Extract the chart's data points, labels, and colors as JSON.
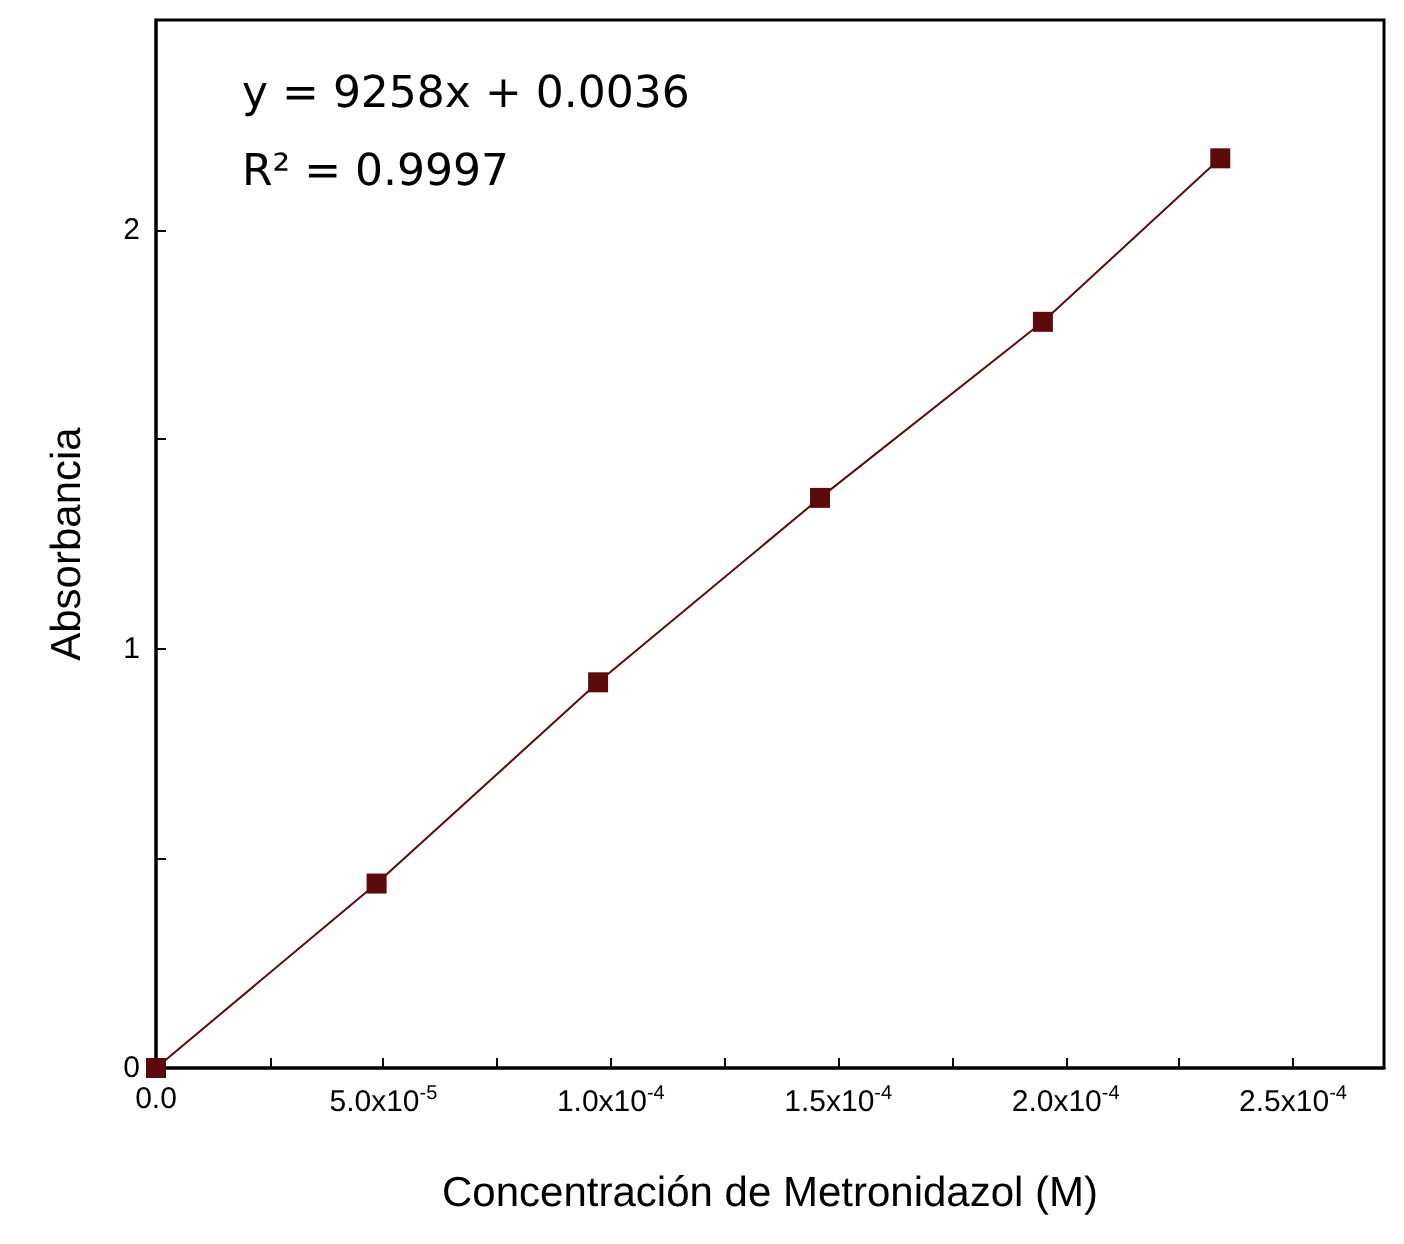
{
  "chart_data": {
    "type": "line",
    "xlabel": "Concentración de Metronidazol (M)",
    "ylabel": "Absorbancia",
    "x": [
      0,
      4.85e-05,
      9.72e-05,
      0.000146,
      0.000195,
      0.000234
    ],
    "series": [
      {
        "color": "#5c0a0a",
        "values": [
          0,
          0.44,
          0.92,
          1.36,
          1.78,
          2.17
        ]
      }
    ],
    "xlim": [
      0,
      0.00027
    ],
    "xticks": [
      {
        "value": 0,
        "label": "0.0"
      },
      {
        "value": 2.5e-05,
        "label": null
      },
      {
        "value": 5e-05,
        "label": "5.0x10$^{-5}$"
      },
      {
        "value": 7.5e-05,
        "label": null
      },
      {
        "value": 0.0001,
        "label": "1.0x10$^{-4}$"
      },
      {
        "value": 0.000125,
        "label": null
      },
      {
        "value": 0.00015,
        "label": "1.5x10$^{-4}$"
      },
      {
        "value": 0.000175,
        "label": null
      },
      {
        "value": 0.0002,
        "label": "2.0x10$^{-4}$"
      },
      {
        "value": 0.000225,
        "label": null
      },
      {
        "value": 0.00025,
        "label": "2.5x10$^{-4}$"
      }
    ],
    "ylim": [
      0,
      2.5
    ],
    "yticks": [
      0,
      {
        "value": 0.5,
        "label": null
      },
      1,
      {
        "value": 1.5,
        "label": null
      },
      2
    ],
    "annotations": [
      "y = 9258x + 0.0036",
      "R² = 0.9997"
    ],
    "marker": "square",
    "line_style": "solid",
    "grid": false
  }
}
